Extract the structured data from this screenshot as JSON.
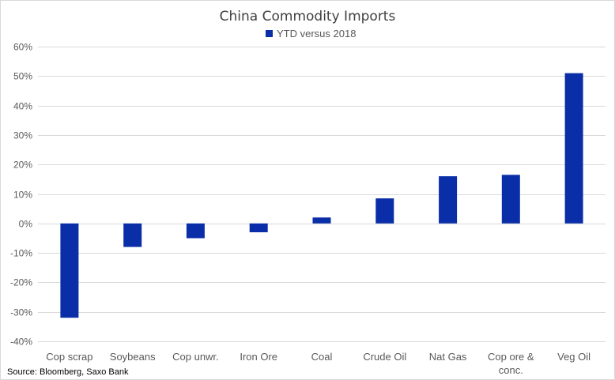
{
  "chart_data": {
    "type": "bar",
    "title": "China Commodity Imports",
    "legend": {
      "label": "YTD versus 2018",
      "position": "top"
    },
    "categories": [
      [
        "Cop scrap"
      ],
      [
        "Soybeans"
      ],
      [
        "Cop unwr."
      ],
      [
        "Iron Ore"
      ],
      [
        "Coal"
      ],
      [
        "Crude Oil"
      ],
      [
        "Nat Gas"
      ],
      [
        "Cop ore &",
        "conc."
      ],
      [
        "Veg Oil"
      ]
    ],
    "series": [
      {
        "name": "YTD versus 2018",
        "values": [
          -32,
          -8,
          -5,
          -3,
          2,
          8.5,
          16,
          16.5,
          51
        ]
      }
    ],
    "ylim": [
      -40,
      60
    ],
    "yticks": [
      60,
      50,
      40,
      30,
      20,
      10,
      0,
      -10,
      -20,
      -30,
      -40
    ],
    "ytick_labels": [
      "60%",
      "50%",
      "40%",
      "30%",
      "20%",
      "10%",
      "0%",
      "-10%",
      "-20%",
      "-30%",
      "-40%"
    ],
    "grid": true,
    "xlabel": "",
    "ylabel": ""
  },
  "source": "Source: Bloomberg, Saxo Bank",
  "colors": {
    "bar": "#0a2ea8",
    "grid": "#d9d9d9",
    "axis_text": "#595959"
  }
}
